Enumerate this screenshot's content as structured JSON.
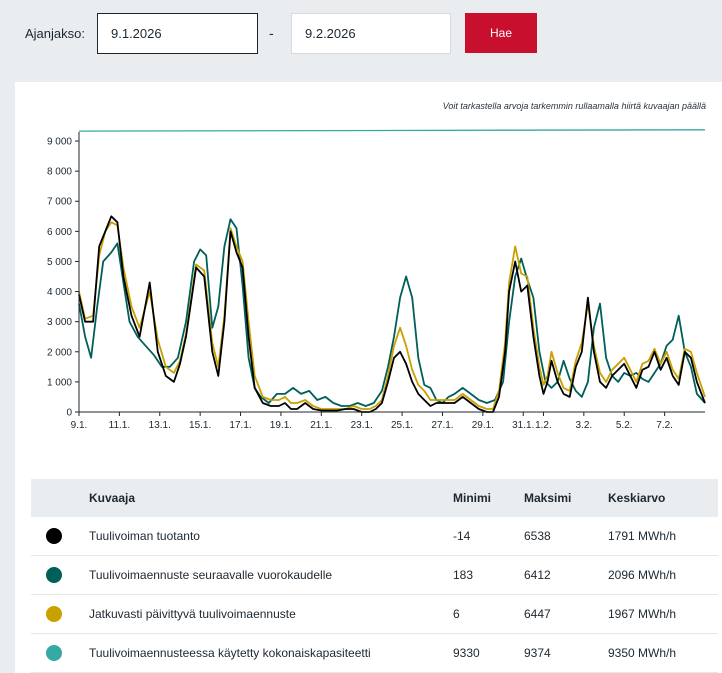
{
  "filters": {
    "period_label": "Ajanjakso:",
    "start_value": "9.1.2026",
    "separator": "-",
    "end_value": "9.2.2026",
    "search_label": "Hae"
  },
  "hint": "Voit tarkastella arvoja tarkemmin rullaamalla hiirtä kuvaajan päällä",
  "colors": {
    "accent": "#c8102e",
    "production": "#000000",
    "forecast_day_ahead": "#005f58",
    "forecast_updated": "#c9a000",
    "capacity": "#35aaa3"
  },
  "chart_data": {
    "type": "line",
    "ylim": [
      0,
      9300
    ],
    "y_ticks": [
      "0",
      "1 000",
      "2 000",
      "3 000",
      "4 000",
      "5 000",
      "6 000",
      "7 000",
      "8 000",
      "9 000"
    ],
    "y_tick_values": [
      0,
      1000,
      2000,
      3000,
      4000,
      5000,
      6000,
      7000,
      8000,
      9000
    ],
    "x_ticks": [
      "9.1.",
      "11.1.",
      "13.1.",
      "15.1.",
      "17.1.",
      "19.1.",
      "21.1.",
      "23.1.",
      "25.1.",
      "27.1.",
      "29.1.",
      "31.1.",
      "1.2.",
      "3.2.",
      "5.2.",
      "7.2."
    ],
    "x_tick_days": [
      0,
      2,
      4,
      6,
      8,
      10,
      12,
      14,
      16,
      18,
      20,
      22,
      23,
      25,
      27,
      29
    ],
    "x_range_days": [
      0,
      31
    ],
    "series": [
      {
        "name": "Tuulivoiman tuotanto",
        "color_key": "production",
        "x": [
          0,
          0.3,
          0.7,
          1,
          1.3,
          1.6,
          1.9,
          2.2,
          2.6,
          3,
          3.5,
          3.9,
          4.3,
          4.7,
          5,
          5.3,
          5.8,
          6.2,
          6.6,
          6.9,
          7.2,
          7.5,
          7.8,
          8.1,
          8.4,
          8.7,
          9.1,
          9.5,
          9.9,
          10.2,
          10.5,
          10.8,
          11.2,
          11.6,
          12,
          12.4,
          12.8,
          13.2,
          13.6,
          14,
          14.4,
          14.7,
          15,
          15.3,
          15.6,
          15.9,
          16.2,
          16.5,
          16.8,
          17.1,
          17.4,
          17.7,
          18,
          18.3,
          18.6,
          19,
          19.4,
          19.8,
          20.2,
          20.5,
          20.8,
          21.1,
          21.3,
          21.6,
          21.9,
          22.2,
          22.5,
          22.8,
          23,
          23.2,
          23.4,
          23.7,
          24,
          24.3,
          24.6,
          24.9,
          25.2,
          25.5,
          25.8,
          26.1,
          26.4,
          26.7,
          27,
          27.3,
          27.6,
          27.9,
          28.2,
          28.5,
          28.8,
          29.1,
          29.4,
          29.7,
          30,
          30.3,
          30.6,
          31
        ],
        "values": [
          3900,
          3000,
          3000,
          5500,
          6000,
          6500,
          6300,
          4500,
          3200,
          2500,
          4300,
          2000,
          1200,
          1000,
          1600,
          2500,
          4800,
          4500,
          2000,
          1200,
          3000,
          6000,
          5300,
          4800,
          2500,
          800,
          300,
          200,
          200,
          300,
          100,
          100,
          300,
          100,
          50,
          50,
          50,
          100,
          100,
          0,
          0,
          100,
          300,
          1000,
          1800,
          2000,
          1600,
          1000,
          600,
          400,
          200,
          300,
          300,
          300,
          300,
          500,
          300,
          100,
          0,
          0,
          500,
          2000,
          4000,
          5000,
          4000,
          4200,
          2500,
          1200,
          600,
          1000,
          1700,
          1000,
          600,
          500,
          1500,
          2000,
          3800,
          2000,
          1000,
          800,
          1200,
          1400,
          1600,
          1200,
          800,
          1400,
          1500,
          2000,
          1400,
          1800,
          1200,
          900,
          2000,
          1800,
          1000,
          300
        ]
      },
      {
        "name": "Tuulivoimaennuste seuraavalle vuorokaudelle",
        "color_key": "forecast_day_ahead",
        "x": [
          0,
          0.3,
          0.6,
          0.9,
          1.2,
          1.6,
          1.9,
          2.2,
          2.5,
          2.9,
          3.3,
          3.7,
          4.1,
          4.5,
          4.9,
          5.3,
          5.7,
          6,
          6.3,
          6.6,
          6.9,
          7.2,
          7.5,
          7.8,
          8.1,
          8.4,
          8.7,
          9,
          9.4,
          9.8,
          10.2,
          10.6,
          11,
          11.4,
          11.8,
          12.2,
          12.6,
          13,
          13.4,
          13.8,
          14.2,
          14.6,
          15,
          15.3,
          15.6,
          15.9,
          16.2,
          16.5,
          16.8,
          17.1,
          17.4,
          17.7,
          18,
          18.3,
          18.6,
          19,
          19.4,
          19.8,
          20.2,
          20.6,
          21,
          21.3,
          21.6,
          21.9,
          22.2,
          22.5,
          22.8,
          23.1,
          23.4,
          23.7,
          24,
          24.3,
          24.6,
          24.9,
          25.2,
          25.5,
          25.8,
          26.1,
          26.4,
          26.7,
          27,
          27.3,
          27.6,
          27.9,
          28.2,
          28.5,
          28.8,
          29.1,
          29.4,
          29.7,
          30,
          30.3,
          30.6,
          31
        ],
        "values": [
          3600,
          2500,
          1800,
          3500,
          5000,
          5300,
          5600,
          4300,
          3000,
          2500,
          2200,
          1900,
          1500,
          1500,
          1800,
          3000,
          5000,
          5400,
          5200,
          2800,
          3500,
          5500,
          6400,
          6100,
          4200,
          1800,
          800,
          500,
          300,
          600,
          600,
          800,
          600,
          700,
          400,
          500,
          300,
          200,
          200,
          300,
          200,
          300,
          700,
          1500,
          2500,
          3800,
          4500,
          3800,
          1800,
          900,
          800,
          400,
          300,
          500,
          600,
          800,
          600,
          400,
          300,
          400,
          1000,
          3000,
          4500,
          5100,
          4400,
          3800,
          2000,
          1000,
          800,
          1000,
          1700,
          1100,
          700,
          500,
          1000,
          2800,
          3600,
          1800,
          1200,
          1000,
          1300,
          1200,
          1300,
          1100,
          1000,
          1300,
          1600,
          2200,
          2400,
          3200,
          2000,
          1500,
          600,
          300
        ]
      },
      {
        "name": "Jatkuvasti päivittyvä tuulivoimaennuste",
        "color_key": "forecast_updated",
        "x": [
          0,
          0.3,
          0.7,
          1,
          1.3,
          1.6,
          1.9,
          2.2,
          2.6,
          3,
          3.5,
          3.9,
          4.3,
          4.7,
          5,
          5.3,
          5.8,
          6.2,
          6.6,
          6.9,
          7.2,
          7.5,
          7.8,
          8.1,
          8.4,
          8.7,
          9.1,
          9.5,
          9.9,
          10.2,
          10.5,
          10.8,
          11.2,
          11.6,
          12,
          12.4,
          12.8,
          13.2,
          13.6,
          14,
          14.4,
          14.7,
          15,
          15.3,
          15.6,
          15.9,
          16.2,
          16.5,
          16.8,
          17.1,
          17.4,
          17.7,
          18,
          18.3,
          18.6,
          19,
          19.4,
          19.8,
          20.2,
          20.5,
          20.8,
          21.1,
          21.3,
          21.6,
          21.9,
          22.2,
          22.5,
          22.8,
          23,
          23.2,
          23.4,
          23.7,
          24,
          24.3,
          24.6,
          24.9,
          25.2,
          25.5,
          25.8,
          26.1,
          26.4,
          26.7,
          27,
          27.3,
          27.6,
          27.9,
          28.2,
          28.5,
          28.8,
          29.1,
          29.4,
          29.7,
          30,
          30.3,
          30.6,
          31
        ],
        "values": [
          4000,
          3100,
          3200,
          5200,
          6000,
          6300,
          6200,
          4800,
          3500,
          2800,
          4000,
          2400,
          1500,
          1300,
          1700,
          2600,
          4900,
          4700,
          2300,
          1500,
          3200,
          6100,
          5500,
          5000,
          3000,
          1200,
          500,
          400,
          400,
          500,
          300,
          300,
          400,
          200,
          100,
          100,
          100,
          100,
          200,
          100,
          100,
          200,
          400,
          1200,
          2200,
          2800,
          2200,
          1400,
          900,
          700,
          400,
          400,
          400,
          400,
          400,
          600,
          400,
          200,
          100,
          100,
          700,
          2300,
          4300,
          5500,
          4600,
          4500,
          2800,
          1500,
          900,
          1200,
          2000,
          1300,
          800,
          700,
          1700,
          2300,
          3600,
          2200,
          1300,
          1000,
          1400,
          1600,
          1800,
          1400,
          1000,
          1600,
          1700,
          2100,
          1600,
          2000,
          1400,
          1100,
          2100,
          2000,
          1300,
          500
        ]
      },
      {
        "name": "Tuulivoimaennusteessa käytetty kokonaiskapasiteetti",
        "color_key": "capacity",
        "x": [
          0,
          31
        ],
        "values": [
          9330,
          9374
        ]
      }
    ]
  },
  "legend_table": {
    "headers": {
      "name": "Kuvaaja",
      "min": "Minimi",
      "max": "Maksimi",
      "avg": "Keskiarvo"
    },
    "rows": [
      {
        "name": "Tuulivoiman tuotanto",
        "color": "#000000",
        "min": "-14",
        "max": "6538",
        "avg": "1791 MWh/h"
      },
      {
        "name": "Tuulivoimaennuste seuraavalle vuorokaudelle",
        "color": "#005f58",
        "min": "183",
        "max": "6412",
        "avg": "2096 MWh/h"
      },
      {
        "name": "Jatkuvasti päivittyvä tuulivoimaennuste",
        "color": "#c9a000",
        "min": "6",
        "max": "6447",
        "avg": "1967 MWh/h"
      },
      {
        "name": "Tuulivoimaennusteessa käytetty kokonaiskapasiteetti",
        "color": "#35aaa3",
        "min": "9330",
        "max": "9374",
        "avg": "9350 MWh/h"
      }
    ]
  }
}
